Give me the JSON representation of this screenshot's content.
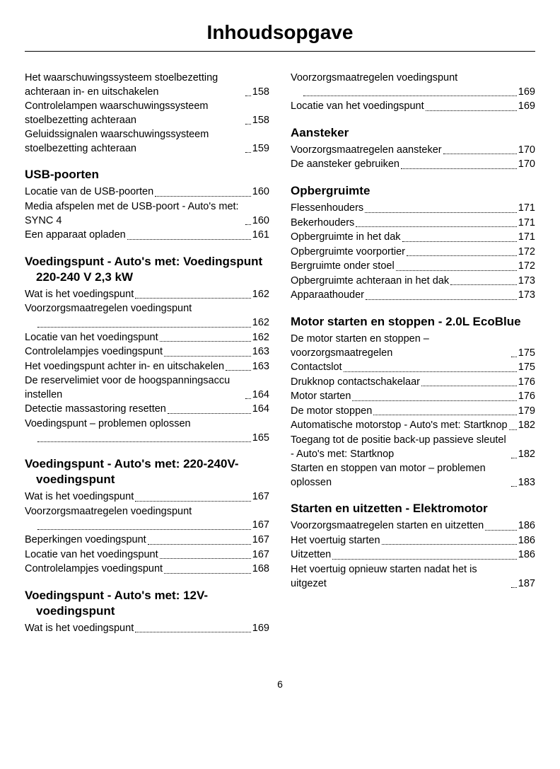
{
  "title": "Inhoudsopgave",
  "page_number": "6",
  "left_column": {
    "orphan_entries": [
      {
        "text": "Het waarschuwingssysteem stoelbezetting achteraan in- en uitschakelen",
        "page": "158",
        "lines": 3
      },
      {
        "text": "Controlelampen waarschuwingssysteem stoelbezetting achteraan",
        "page": "158"
      },
      {
        "text": "Geluidssignalen waarschuwingssysteem stoelbezetting achteraan",
        "page": "159"
      }
    ],
    "sections": [
      {
        "heading": "USB-poorten",
        "entries": [
          {
            "text": "Locatie van de USB-poorten",
            "page": "160"
          },
          {
            "text": "Media afspelen met de USB-poort - Auto's met: SYNC 4",
            "page": "160"
          },
          {
            "text": "Een apparaat opladen",
            "page": "161"
          }
        ]
      },
      {
        "heading": "Voedingspunt - Auto's met: Voedingspunt 220-240 V 2,3 kW",
        "entries": [
          {
            "text": "Wat is het voedingspunt",
            "page": "162"
          },
          {
            "text": "Voorzorgsmaatregelen voedingspunt",
            "page": "162",
            "leader_below": true
          },
          {
            "text": "Locatie van het voedingspunt",
            "page": "162"
          },
          {
            "text": "Controlelampjes voedingspunt",
            "page": "163"
          },
          {
            "text": "Het voedingspunt achter in- en uitschakelen",
            "page": "163"
          },
          {
            "text": "De reservelimiet voor de hoogspanningsaccu instellen",
            "page": "164"
          },
          {
            "text": "Detectie massastoring resetten",
            "page": "164"
          },
          {
            "text": "Voedingspunt – problemen oplossen",
            "page": "165",
            "leader_below": true
          }
        ]
      },
      {
        "heading": "Voedingspunt - Auto's met: 220-240V-voedingspunt",
        "entries": [
          {
            "text": "Wat is het voedingspunt",
            "page": "167"
          },
          {
            "text": "Voorzorgsmaatregelen voedingspunt",
            "page": "167",
            "leader_below": true
          },
          {
            "text": "Beperkingen voedingspunt",
            "page": "167"
          },
          {
            "text": "Locatie van het voedingspunt",
            "page": "167"
          },
          {
            "text": "Controlelampjes voedingspunt",
            "page": "168"
          }
        ]
      },
      {
        "heading": "Voedingspunt - Auto's met: 12V-voedingspunt",
        "entries": [
          {
            "text": "Wat is het voedingspunt",
            "page": "169"
          }
        ]
      }
    ]
  },
  "right_column": {
    "orphan_entries": [
      {
        "text": "Voorzorgsmaatregelen voedingspunt",
        "page": "169",
        "leader_below": true
      },
      {
        "text": "Locatie van het voedingspunt",
        "page": "169"
      }
    ],
    "sections": [
      {
        "heading": "Aansteker",
        "entries": [
          {
            "text": "Voorzorgsmaatregelen aansteker",
            "page": "170"
          },
          {
            "text": "De aansteker gebruiken",
            "page": "170"
          }
        ]
      },
      {
        "heading": "Opbergruimte",
        "entries": [
          {
            "text": "Flessenhouders",
            "page": "171"
          },
          {
            "text": "Bekerhouders",
            "page": "171"
          },
          {
            "text": "Opbergruimte in het dak",
            "page": "171"
          },
          {
            "text": "Opbergruimte voorportier",
            "page": "172"
          },
          {
            "text": "Bergruimte onder stoel",
            "page": "172"
          },
          {
            "text": "Opbergruimte achteraan in het dak",
            "page": "173"
          },
          {
            "text": "Apparaathouder",
            "page": "173"
          }
        ]
      },
      {
        "heading": "Motor starten en stoppen - 2.0L EcoBlue",
        "entries": [
          {
            "text": "De motor starten en stoppen – voorzorgsmaatregelen",
            "page": "175"
          },
          {
            "text": "Contactslot",
            "page": "175"
          },
          {
            "text": "Drukknop contactschakelaar",
            "page": "176"
          },
          {
            "text": "Motor starten",
            "page": "176"
          },
          {
            "text": "De motor stoppen",
            "page": "179"
          },
          {
            "text": "Automatische motorstop - Auto's met: Startknop",
            "page": "182"
          },
          {
            "text": "Toegang tot de positie back-up passieve sleutel - Auto's met: Startknop",
            "page": "182"
          },
          {
            "text": "Starten en stoppen van motor – problemen oplossen",
            "page": "183"
          }
        ]
      },
      {
        "heading": "Starten en uitzetten - Elektromotor",
        "entries": [
          {
            "text": "Voorzorgsmaatregelen starten en uitzetten",
            "page": "186"
          },
          {
            "text": "Het voertuig starten",
            "page": "186"
          },
          {
            "text": "Uitzetten",
            "page": "186"
          },
          {
            "text": "Het voertuig opnieuw starten nadat het is uitgezet",
            "page": "187"
          }
        ]
      }
    ]
  }
}
